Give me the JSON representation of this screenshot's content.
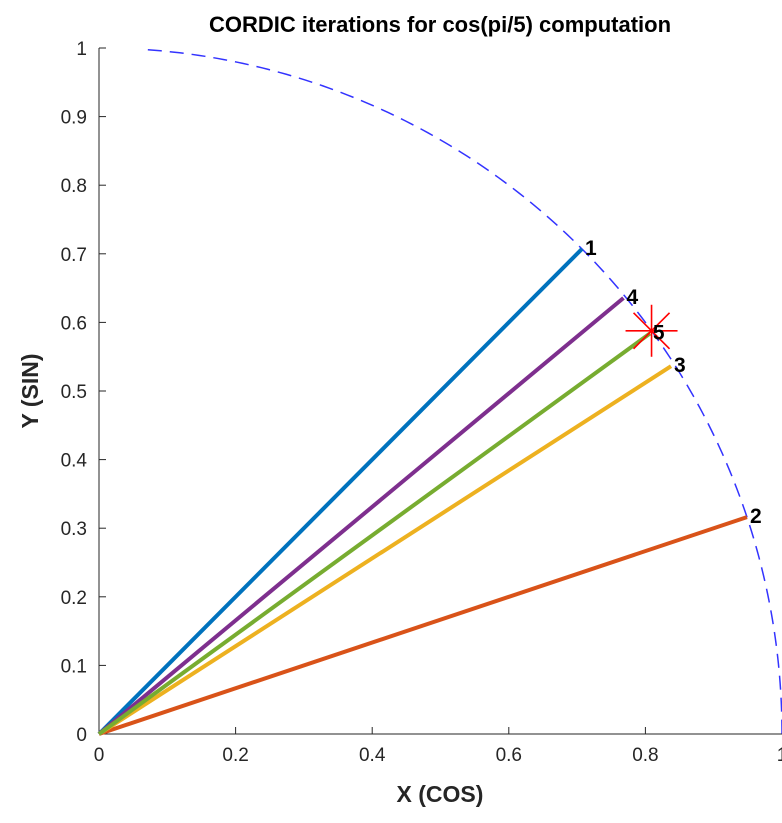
{
  "chart_data": {
    "type": "line",
    "title": "CORDIC iterations for cos(pi/5) computation",
    "xlabel": "X (COS)",
    "ylabel": "Y (SIN)",
    "xlim": [
      0,
      1
    ],
    "ylim": [
      0,
      1
    ],
    "x_ticks": [
      "0",
      "0.2",
      "0.4",
      "0.6",
      "0.8",
      "1"
    ],
    "y_ticks": [
      "0",
      "0.1",
      "0.2",
      "0.3",
      "0.4",
      "0.5",
      "0.6",
      "0.7",
      "0.8",
      "0.9",
      "1"
    ],
    "grid": false,
    "reference_arc": {
      "type": "unit-circle",
      "style": "dashed",
      "color": "#3333ff"
    },
    "series": [
      {
        "label": "1",
        "x": [
          0,
          0.7071
        ],
        "y": [
          0,
          0.7071
        ],
        "color": "#0072bd"
      },
      {
        "label": "2",
        "x": [
          0,
          0.9487
        ],
        "y": [
          0,
          0.3162
        ],
        "color": "#d95319"
      },
      {
        "label": "3",
        "x": [
          0,
          0.8375
        ],
        "y": [
          0,
          0.5361
        ],
        "color": "#edb120"
      },
      {
        "label": "4",
        "x": [
          0,
          0.7679
        ],
        "y": [
          0,
          0.6356
        ],
        "color": "#7e2f8e"
      },
      {
        "label": "5",
        "x": [
          0,
          0.8066
        ],
        "y": [
          0,
          0.5838
        ],
        "color": "#77ac30"
      }
    ],
    "target_point": {
      "x": 0.809,
      "y": 0.5878,
      "marker": "asterisk",
      "color": "#ff0000"
    }
  }
}
